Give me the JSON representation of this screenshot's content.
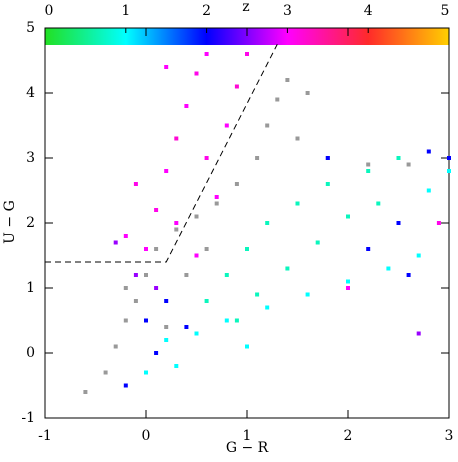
{
  "chart_data": {
    "type": "scatter",
    "xlabel": "G − R",
    "ylabel": "U − G",
    "zlabel": "z",
    "xlim": [
      -1,
      3
    ],
    "ylim": [
      -1,
      5
    ],
    "zlim": [
      0,
      5
    ],
    "xticks": [
      -1,
      0,
      1,
      2,
      3
    ],
    "yticks": [
      -1,
      0,
      1,
      2,
      3,
      4,
      5
    ],
    "zticks": [
      0,
      1,
      2,
      3,
      4,
      5
    ],
    "colormap": [
      "#22e022",
      "#00ffff",
      "#0000ff",
      "#ff00ff",
      "#ff2a2a",
      "#ffd000"
    ],
    "series": [
      {
        "color": "#999999",
        "x": [
          -0.6,
          -0.4,
          -0.3,
          -0.2,
          -0.1,
          0,
          0.1,
          0.3,
          0.5,
          0.7,
          0.9,
          1.1,
          1.2,
          1.3,
          1.4,
          1.6,
          1.5,
          1.8,
          2.2,
          2.6,
          0.2,
          0.4,
          0.6,
          -0.2
        ],
        "y": [
          -0.6,
          -0.3,
          0.1,
          0.5,
          0.8,
          1.2,
          1.6,
          1.9,
          2.1,
          2.3,
          2.6,
          3.0,
          3.5,
          3.9,
          4.2,
          4.0,
          3.3,
          3.0,
          2.9,
          2.9,
          0.4,
          1.2,
          1.6,
          1.0
        ]
      },
      {
        "x": [
          0,
          0.1,
          0.2,
          0.3,
          0.4,
          0.5,
          0.6,
          0.6,
          0.8,
          0.9,
          0.3,
          -0.2,
          -0.1,
          0.2,
          0.7,
          1.0,
          0.5,
          2.0,
          2.9,
          0.6,
          0.8,
          1.0,
          1.2,
          1.5,
          1.8,
          2.2,
          2.5,
          1.4,
          1.7,
          2.0,
          1.1,
          2.3,
          0.9,
          0.2,
          0.5,
          0.8,
          1.2,
          1.6,
          2.0,
          2.4,
          2.7,
          0.3,
          0,
          1.0,
          2.8,
          3.0,
          0,
          0.2,
          0.1,
          -0.2,
          0.4,
          2.5,
          2.8,
          3.0,
          2.2,
          1.8,
          2.6,
          -0.1,
          -0.3,
          0.1,
          2.7
        ],
        "y": [
          1.6,
          2.2,
          2.8,
          3.3,
          3.8,
          4.3,
          4.6,
          3.0,
          3.5,
          4.1,
          2.0,
          1.8,
          2.6,
          4.4,
          2.4,
          4.6,
          1.5,
          1.0,
          2.0,
          0.8,
          1.2,
          1.6,
          2.0,
          2.3,
          2.6,
          2.8,
          3.0,
          1.3,
          1.7,
          2.1,
          0.9,
          2.3,
          0.5,
          0.2,
          0.3,
          0.5,
          0.7,
          0.9,
          1.1,
          1.3,
          1.5,
          -0.2,
          -0.3,
          0.1,
          2.5,
          2.8,
          0.5,
          0.8,
          0,
          -0.5,
          0.4,
          2.0,
          3.1,
          3.0,
          1.6,
          3.0,
          1.2,
          1.2,
          1.7,
          1.0,
          0.3
        ],
        "z": [
          3,
          3.1,
          3,
          3.2,
          3,
          3.1,
          3,
          3.1,
          3,
          3.2,
          3,
          3,
          3.1,
          3,
          3,
          3.1,
          3,
          3,
          3.1,
          0.7,
          0.7,
          0.7,
          0.7,
          0.7,
          0.7,
          0.7,
          0.7,
          0.7,
          0.7,
          0.7,
          0.7,
          0.7,
          0.7,
          1,
          1,
          1,
          1,
          1,
          1,
          1,
          1,
          1,
          1,
          1,
          1,
          1,
          2,
          2,
          2,
          2,
          2,
          2,
          2,
          2,
          2,
          2,
          2,
          2.6,
          2.6,
          2.6,
          2.6
        ]
      }
    ],
    "lines": [
      {
        "color": "#000000",
        "x": [
          -1,
          0.2,
          1.3
        ],
        "y": [
          1.4,
          1.4,
          4.75
        ]
      }
    ]
  }
}
